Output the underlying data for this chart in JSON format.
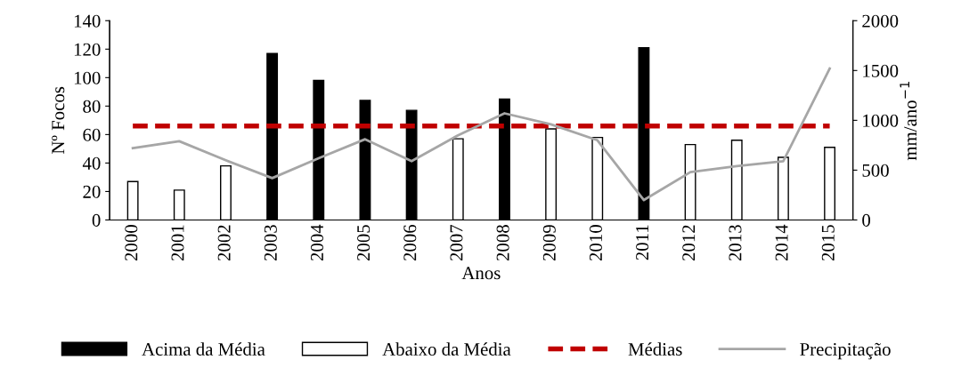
{
  "chart_data": {
    "type": "bar",
    "xlabel": "Anos",
    "ylabel": "Nº Focos",
    "y2label": "mm/ano$^{−1}$",
    "categories": [
      "2000",
      "2001",
      "2002",
      "2003",
      "2004",
      "2005",
      "2006",
      "2007",
      "2008",
      "2009",
      "2010",
      "2011",
      "2012",
      "2013",
      "2014",
      "2015"
    ],
    "series": [
      {
        "name": "Acima da Média",
        "color": "#000000",
        "values": [
          null,
          null,
          null,
          117,
          98,
          84,
          77,
          null,
          85,
          null,
          null,
          121,
          null,
          null,
          null,
          null
        ]
      },
      {
        "name": "Abaixo da Média",
        "color": "#ffffff",
        "values": [
          27,
          21,
          38,
          null,
          null,
          null,
          null,
          57,
          null,
          64,
          58,
          null,
          53,
          56,
          44,
          51
        ]
      },
      {
        "name": "Médias",
        "type": "line",
        "color": "#c00000",
        "line_style": "dashed",
        "values": [
          66,
          66,
          66,
          66,
          66,
          66,
          66,
          66,
          66,
          66,
          66,
          66,
          66,
          66,
          66,
          66
        ]
      },
      {
        "name": "Precipitação",
        "type": "line",
        "axis": "y2",
        "color": "#a6a6a6",
        "line_style": "solid",
        "values": [
          720,
          790,
          600,
          420,
          620,
          810,
          590,
          850,
          1070,
          960,
          800,
          200,
          480,
          540,
          590,
          1520
        ]
      }
    ],
    "ylim": [
      0,
      140
    ],
    "yticks": [
      0,
      20,
      40,
      60,
      80,
      100,
      120,
      140
    ],
    "y2lim": [
      0,
      2000
    ],
    "y2ticks": [
      0,
      500,
      1000,
      1500,
      2000
    ],
    "grid": false,
    "legend": "bottom",
    "marker": "none"
  }
}
